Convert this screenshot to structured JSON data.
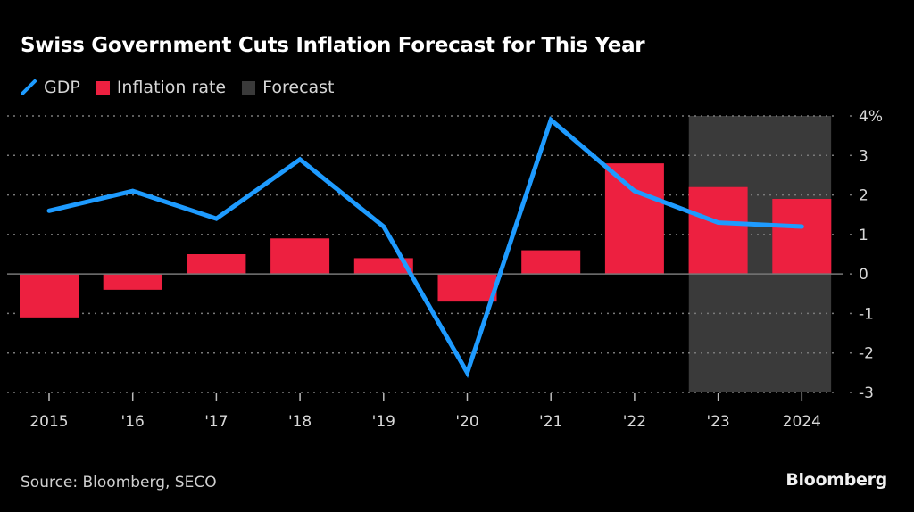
{
  "header": {
    "title": "Swiss Government Cuts Inflation Forecast for This Year"
  },
  "legend": [
    {
      "label": "GDP",
      "kind": "line",
      "color": "#1e9bff"
    },
    {
      "label": "Inflation rate",
      "kind": "bar",
      "color": "#ed2040"
    },
    {
      "label": "Forecast",
      "kind": "shade",
      "color": "#3a3a3a"
    }
  ],
  "footer": {
    "source": "Source: Bloomberg, SECO",
    "brand": "Bloomberg"
  },
  "chart_data": {
    "type": "bar",
    "title": "Swiss Government Cuts Inflation Forecast for This Year",
    "xlabel": "",
    "ylabel": "",
    "categories": [
      "2015",
      "'16",
      "'17",
      "'18",
      "'19",
      "'20",
      "'21",
      "'22",
      "'23",
      "2024"
    ],
    "series": [
      {
        "name": "Inflation rate",
        "type": "bar",
        "color": "#ed2040",
        "values": [
          -1.1,
          -0.4,
          0.5,
          0.9,
          0.4,
          -0.7,
          0.6,
          2.8,
          2.2,
          1.9
        ]
      },
      {
        "name": "GDP",
        "type": "line",
        "color": "#1e9bff",
        "values": [
          1.6,
          2.1,
          1.4,
          2.9,
          1.2,
          -2.5,
          3.9,
          2.1,
          1.3,
          1.2
        ]
      }
    ],
    "forecast_range": [
      "'23",
      "2024"
    ],
    "forecast_color": "#3a3a3a",
    "ylim": [
      -3,
      4
    ],
    "yticks": [
      4,
      3,
      2,
      1,
      0,
      -1,
      -2,
      -3
    ],
    "ytick_labels": [
      "4%",
      "3",
      "2",
      "1",
      "0",
      "-1",
      "-2",
      "-3"
    ],
    "grid": true,
    "y_axis_position": "right",
    "legend_position": "top-left"
  }
}
